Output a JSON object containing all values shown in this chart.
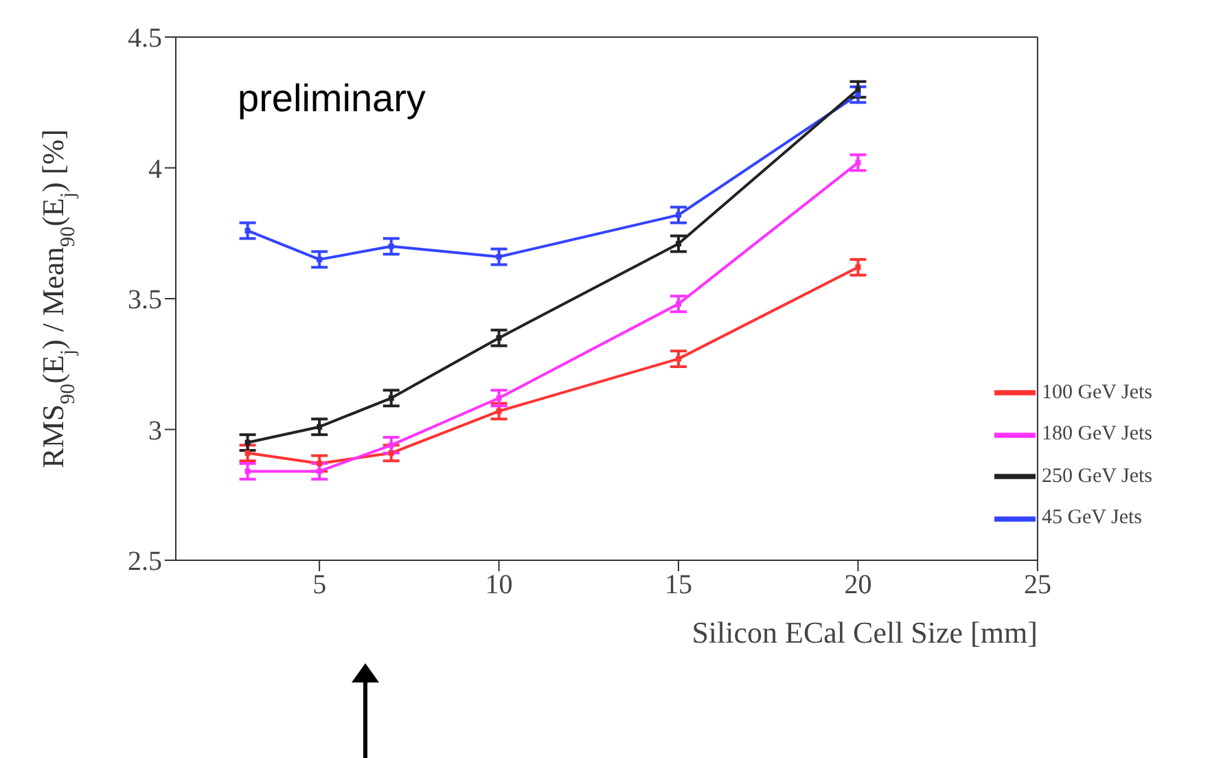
{
  "chart_data": {
    "type": "line",
    "xlabel": "Silicon ECal Cell Size [mm]",
    "ylabel": "RMS$_{90}$(E$_{j}$) / Mean$_{90}$(E$_{j}$) [%]",
    "annotations": [
      "preliminary"
    ],
    "x": [
      3,
      5,
      7,
      10,
      15,
      20
    ],
    "xlim": [
      1,
      25
    ],
    "xticks": [
      5,
      10,
      15,
      20,
      25
    ],
    "ylim": [
      2.5,
      4.5
    ],
    "yticks": [
      2.5,
      3,
      3.5,
      4,
      4.5
    ],
    "grid": false,
    "legend": "bottom right",
    "marker": "square",
    "line_style": "solid",
    "series": [
      {
        "name": "45 GeV Jets",
        "color": "#3344ff",
        "values": [
          3.76,
          3.65,
          3.7,
          3.66,
          3.82,
          4.28
        ],
        "errors": [
          0.03,
          0.03,
          0.03,
          0.03,
          0.03,
          0.03
        ]
      },
      {
        "name": "100 GeV Jets",
        "color": "#ff3333",
        "values": [
          2.91,
          2.87,
          2.91,
          3.07,
          3.27,
          3.62
        ],
        "errors": [
          0.03,
          0.03,
          0.03,
          0.03,
          0.03,
          0.03
        ]
      },
      {
        "name": "180 GeV Jets",
        "color": "#ff33ff",
        "values": [
          2.84,
          2.84,
          2.94,
          3.12,
          3.48,
          4.02
        ],
        "errors": [
          0.03,
          0.03,
          0.03,
          0.03,
          0.03,
          0.03
        ]
      },
      {
        "name": "250 GeV Jets",
        "color": "#222222",
        "values": [
          2.95,
          3.01,
          3.12,
          3.35,
          3.71,
          4.3
        ],
        "errors": [
          0.03,
          0.03,
          0.03,
          0.03,
          0.03,
          0.03
        ]
      }
    ]
  }
}
